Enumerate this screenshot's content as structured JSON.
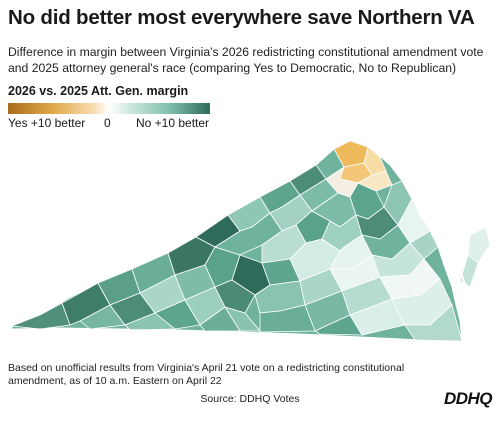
{
  "title": "No did better most everywhere save Northern VA",
  "subtitle": "Difference in margin between Virginia's 2026 redistricting constitutional amendment vote and 2025 attorney general's race (comparing Yes to Democratic, No to Republican)",
  "legend": {
    "title": "2026 vs. 2025 Att. Gen. margin",
    "left_label": "Yes +10 better",
    "center_label": "0",
    "right_label": "No +10 better",
    "colors": [
      "#a86b1c",
      "#e0a848",
      "#f6dcae",
      "#ffffff",
      "#cfe9e0",
      "#7fbfae",
      "#2f6b5b"
    ]
  },
  "footnote": "Based on unofficial results from Virginia's April 21 vote on a redistricting constitutional amendment, as of 10 a.m. Eastern on April 22",
  "source": "Source: DDHQ Votes",
  "logo": "DDHQ",
  "map": {
    "region": "Virginia",
    "colors": {
      "strong_no": "#2f6b5b",
      "mid_no": "#5ea58f",
      "light_no": "#9fd1c1",
      "pale_no": "#d6eee6",
      "neutral": "#f2f7f5",
      "yes_light": "#f7dca6",
      "yes_mid": "#eeb95a",
      "border": "#ffffff"
    }
  }
}
